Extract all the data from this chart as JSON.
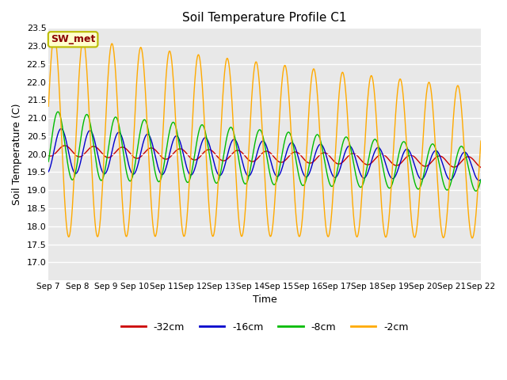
{
  "title": "Soil Temperature Profile C1",
  "xlabel": "Time",
  "ylabel": "Soil Temperature (C)",
  "ylim": [
    16.5,
    23.5
  ],
  "yticks": [
    17.0,
    17.5,
    18.0,
    18.5,
    19.0,
    19.5,
    20.0,
    20.5,
    21.0,
    21.5,
    22.0,
    22.5,
    23.0,
    23.5
  ],
  "xtick_labels": [
    "Sep 7",
    "Sep 8",
    "Sep 9",
    "Sep 10",
    "Sep 11",
    "Sep 12",
    "Sep 13",
    "Sep 14",
    "Sep 15",
    "Sep 16",
    "Sep 17",
    "Sep 18",
    "Sep 19",
    "Sep 20",
    "Sep 21",
    "Sep 22"
  ],
  "colors": {
    "neg32cm": "#cc0000",
    "neg16cm": "#0000cc",
    "neg8cm": "#00bb00",
    "neg2cm": "#ffaa00"
  },
  "legend_labels": [
    "-32cm",
    "-16cm",
    "-8cm",
    "-2cm"
  ],
  "bg_color": "#e8e8e8",
  "annotation_text": "SW_met",
  "annotation_color": "#8b0000",
  "annotation_bg": "#ffffcc",
  "annotation_border": "#bbbb00"
}
